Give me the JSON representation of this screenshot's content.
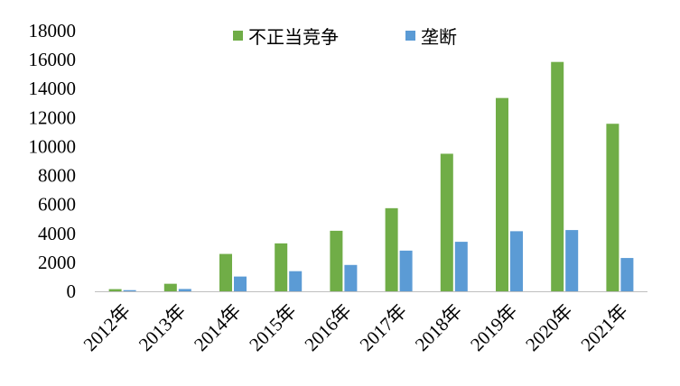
{
  "chart_data": {
    "type": "bar",
    "title": "",
    "xlabel": "",
    "ylabel": "",
    "categories": [
      "2012年",
      "2013年",
      "2014年",
      "2015年",
      "2016年",
      "2017年",
      "2018年",
      "2019年",
      "2020年",
      "2021年"
    ],
    "series": [
      {
        "name": "不正当竞争",
        "color": "#70ad47",
        "values": [
          150,
          520,
          2580,
          3310,
          4180,
          5740,
          9500,
          13350,
          15840,
          11570
        ]
      },
      {
        "name": "垄断",
        "color": "#5b9bd5",
        "values": [
          80,
          160,
          1020,
          1390,
          1820,
          2810,
          3420,
          4150,
          4230,
          2300
        ]
      }
    ],
    "ylim": [
      0,
      18000
    ],
    "yticks": [
      "0",
      "2000",
      "4000",
      "6000",
      "8000",
      "10000",
      "12000",
      "14000",
      "16000",
      "18000"
    ],
    "grid": false,
    "legend_position": "top-center"
  }
}
